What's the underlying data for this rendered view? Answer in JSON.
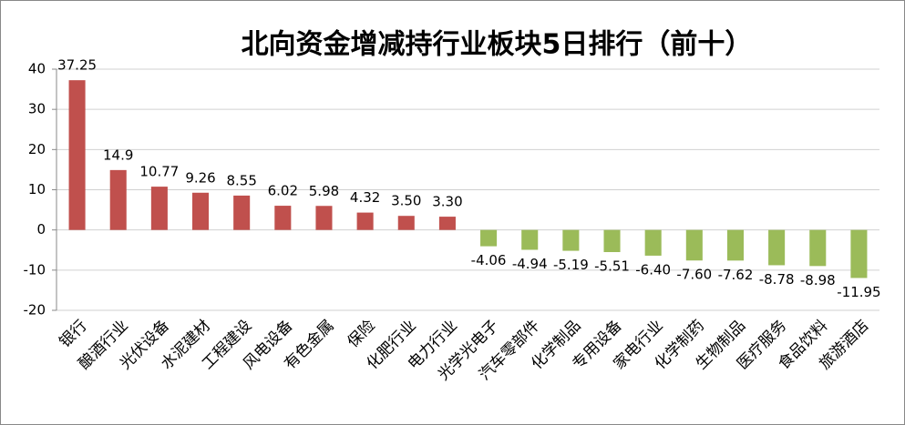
{
  "chart_data": {
    "type": "bar",
    "title": "北向资金增减持行业板块5日排行（前十）",
    "categories": [
      "银行",
      "酿酒行业",
      "光伏设备",
      "水泥建材",
      "工程建设",
      "风电设备",
      "有色金属",
      "保险",
      "化肥行业",
      "电力行业",
      "光学光电子",
      "汽车零部件",
      "化学制品",
      "专用设备",
      "家电行业",
      "化学制药",
      "生物制品",
      "医疗服务",
      "食品饮料",
      "旅游酒店"
    ],
    "values": [
      37.25,
      14.9,
      10.77,
      9.26,
      8.55,
      6.02,
      5.98,
      4.32,
      3.5,
      3.3,
      -4.06,
      -4.94,
      -5.19,
      -5.51,
      -6.4,
      -7.6,
      -7.62,
      -8.78,
      -8.98,
      -11.95
    ],
    "value_labels": [
      "37.25",
      "14.9",
      "10.77",
      "9.26",
      "8.55",
      "6.02",
      "5.98",
      "4.32",
      "3.50",
      "3.30",
      "-4.06",
      "-4.94",
      "-5.19",
      "-5.51",
      "-6.40",
      "-7.60",
      "-7.62",
      "-8.78",
      "-8.98",
      "-11.95"
    ],
    "colors": [
      "#c0504d",
      "#c0504d",
      "#c0504d",
      "#c0504d",
      "#c0504d",
      "#c0504d",
      "#c0504d",
      "#c0504d",
      "#c0504d",
      "#c0504d",
      "#9bbb59",
      "#9bbb59",
      "#9bbb59",
      "#9bbb59",
      "#9bbb59",
      "#9bbb59",
      "#9bbb59",
      "#9bbb59",
      "#9bbb59",
      "#9bbb59"
    ],
    "ylim": [
      -20,
      40
    ],
    "yticks": [
      -20,
      -10,
      0,
      10,
      20,
      30,
      40
    ],
    "grid": true
  }
}
